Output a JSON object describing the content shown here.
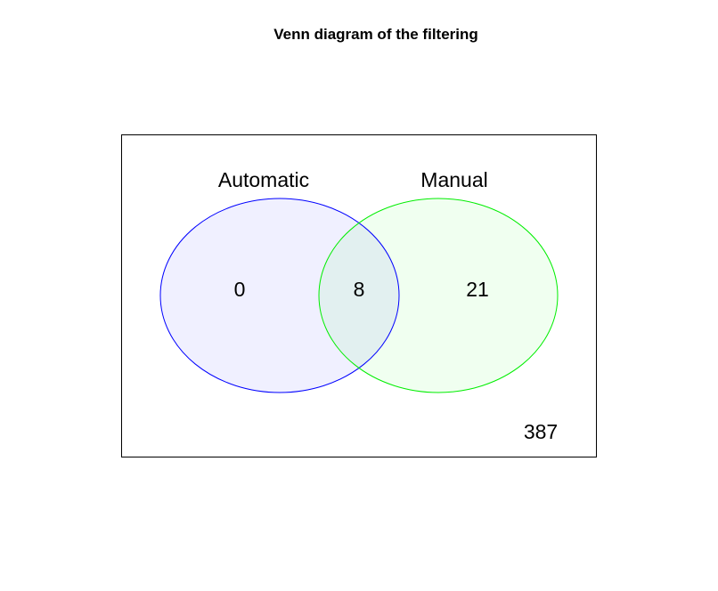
{
  "title": "Venn diagram of the filtering",
  "sets": {
    "a": {
      "label": "Automatic",
      "stroke": "#0000ff",
      "fill": "#f0f0ff"
    },
    "b": {
      "label": "Manual",
      "stroke": "#00ee00",
      "fill": "#f0fff0"
    }
  },
  "intersection_fill": "#e2f0f0",
  "counts": {
    "only_a": "0",
    "both": "8",
    "only_b": "21",
    "outside": "387"
  }
}
